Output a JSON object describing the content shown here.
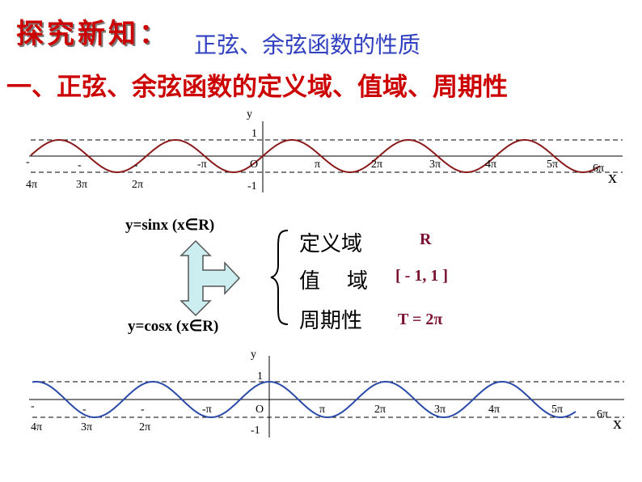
{
  "header": {
    "explore": "探究新知：",
    "subtitle": "正弦、余弦函数的性质",
    "heading": "一、正弦、余弦函数的定义域、值域、周期性"
  },
  "graph_sin": {
    "y_axis": "y",
    "x_axis": "x",
    "origin": "O",
    "y_top": "1",
    "y_bottom": "-1",
    "ticks": [
      "-",
      "4π",
      "-",
      "3π",
      "-",
      "2π",
      "-π",
      "π",
      "2π",
      "3π",
      "4π",
      "5π",
      "6π"
    ],
    "curve": "y = sin x",
    "curve_color": "#8b1a1a"
  },
  "graph_cos": {
    "y_axis": "y",
    "x_axis": "x",
    "origin": "O",
    "y_top": "1",
    "y_bottom": "-1",
    "ticks": [
      "-",
      "4π",
      "-",
      "3π",
      "-",
      "2π",
      "-π",
      "π",
      "2π",
      "3π",
      "4π",
      "5π",
      "6π"
    ],
    "curve": "y = cos x",
    "curve_color": "#2a4aa8"
  },
  "functions": {
    "sin": "y=sinx  (x∈R)",
    "cos": "y=cosx  (x∈R)"
  },
  "properties": {
    "domain_name": "定义域",
    "domain_value": "R",
    "range_name": "值    域",
    "range_value": "[ - 1, 1 ]",
    "period_name": "周期性",
    "period_value": "T = 2π"
  },
  "colors": {
    "title_red": "#cc0000",
    "subtitle_blue": "#3040c0",
    "value_maroon": "#7a1030",
    "arrow_fill": "#cdeef0"
  }
}
